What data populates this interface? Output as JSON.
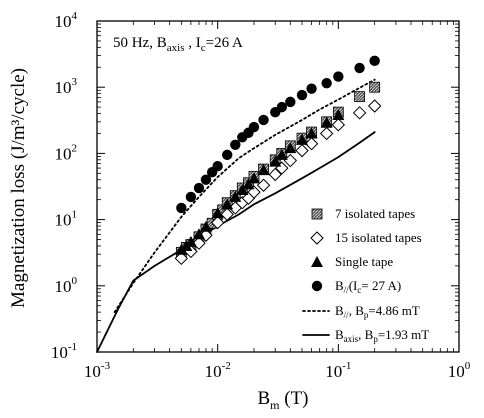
{
  "chart_data": {
    "type": "scatter",
    "annotation": {
      "prefix": "50 Hz, B",
      "sub": "axis",
      "suffix": " , I",
      "sub2": "c",
      "rest": "=26 A"
    },
    "xlabel": {
      "main": "B",
      "sub": "m",
      "rest": " (T)"
    },
    "ylabel": "Magnetization loss (J/m³/cycle)",
    "x_scale": "log",
    "y_scale": "log",
    "xlim": [
      0.001,
      1
    ],
    "ylim": [
      0.1,
      10000
    ],
    "x_ticks": [
      {
        "value": 0.001,
        "base": "10",
        "exp": "-3"
      },
      {
        "value": 0.01,
        "base": "10",
        "exp": "-2"
      },
      {
        "value": 0.1,
        "base": "10",
        "exp": "-1"
      },
      {
        "value": 1,
        "base": "10",
        "exp": "0"
      }
    ],
    "y_ticks": [
      {
        "value": 0.1,
        "base": "10",
        "exp": "-1"
      },
      {
        "value": 1,
        "base": "10",
        "exp": "0"
      },
      {
        "value": 10,
        "base": "10",
        "exp": "1"
      },
      {
        "value": 100,
        "base": "10",
        "exp": "2"
      },
      {
        "value": 1000,
        "base": "10",
        "exp": "3"
      },
      {
        "value": 10000,
        "base": "10",
        "exp": "4"
      }
    ],
    "grid": false,
    "legend_position": "lower-right",
    "series": [
      {
        "name": "7 isolated tapes",
        "marker": "square-hatched",
        "x": [
          0.005,
          0.0055,
          0.006,
          0.007,
          0.008,
          0.009,
          0.01,
          0.011,
          0.012,
          0.014,
          0.016,
          0.018,
          0.02,
          0.024,
          0.03,
          0.034,
          0.04,
          0.05,
          0.06,
          0.08,
          0.1,
          0.15,
          0.2
        ],
        "y": [
          3.2,
          3.8,
          4.2,
          5.5,
          7.2,
          8.8,
          12,
          14,
          18,
          23,
          30,
          36,
          45,
          58,
          80,
          100,
          130,
          170,
          210,
          300,
          420,
          720,
          1000
        ]
      },
      {
        "name": "15 isolated tapes",
        "marker": "diamond-open",
        "x": [
          0.005,
          0.006,
          0.007,
          0.008,
          0.01,
          0.012,
          0.014,
          0.016,
          0.018,
          0.02,
          0.024,
          0.03,
          0.034,
          0.04,
          0.05,
          0.06,
          0.08,
          0.1,
          0.15,
          0.2
        ],
        "y": [
          2.6,
          3.3,
          4.4,
          5.8,
          9,
          12,
          15,
          18,
          21,
          26,
          33,
          48,
          60,
          78,
          110,
          140,
          200,
          270,
          410,
          520
        ]
      },
      {
        "name": "Single tape",
        "marker": "triangle-filled",
        "x": [
          0.005,
          0.0055,
          0.006,
          0.007,
          0.008,
          0.01,
          0.012,
          0.014,
          0.016,
          0.018,
          0.02,
          0.024,
          0.03,
          0.034,
          0.04,
          0.05,
          0.06,
          0.08,
          0.1
        ],
        "y": [
          3.5,
          4,
          4.6,
          6,
          7.8,
          12.5,
          17,
          22,
          28,
          34,
          42,
          56,
          75,
          95,
          120,
          160,
          200,
          290,
          380
        ]
      },
      {
        "name": "B//(Ic= 27 A)",
        "legend": {
          "main": "B",
          "sub": "//",
          "rest": "(I",
          "sub2": "c",
          "rest2": "= 27 A)"
        },
        "marker": "circle-filled",
        "x": [
          0.005,
          0.006,
          0.007,
          0.008,
          0.009,
          0.01,
          0.012,
          0.014,
          0.016,
          0.018,
          0.02,
          0.024,
          0.03,
          0.034,
          0.04,
          0.05,
          0.06,
          0.08,
          0.1,
          0.15,
          0.2
        ],
        "y": [
          15,
          22,
          30,
          40,
          52,
          64,
          95,
          135,
          175,
          205,
          250,
          320,
          420,
          500,
          600,
          760,
          950,
          1150,
          1450,
          1950,
          2500
        ]
      },
      {
        "name": "B//, Bp=4.86 mT",
        "legend": {
          "main": "B",
          "sub": "//",
          "rest": ", B",
          "sub2": "p",
          "rest2": "=4.86 mT"
        },
        "marker": "dotted-line",
        "x": [
          0.0014,
          0.002,
          0.003,
          0.005,
          0.007,
          0.01,
          0.015,
          0.02,
          0.03,
          0.05,
          0.07,
          0.1,
          0.15,
          0.2
        ],
        "y": [
          0.4,
          1.1,
          3.2,
          11,
          22,
          44,
          85,
          120,
          190,
          320,
          460,
          650,
          980,
          1300
        ]
      },
      {
        "name": "Baxis, Bp=1.93 mT",
        "legend": {
          "main": "B",
          "sub": "axis",
          "rest": ", B",
          "sub2": "p",
          "rest2": "=1.93 mT"
        },
        "marker": "solid-line",
        "x": [
          0.001,
          0.0015,
          0.002,
          0.003,
          0.005,
          0.007,
          0.01,
          0.015,
          0.02,
          0.03,
          0.05,
          0.07,
          0.1,
          0.15,
          0.2
        ],
        "y": [
          0.1,
          0.45,
          1.2,
          2.0,
          3.5,
          5.3,
          8,
          12,
          17,
          25,
          42,
          60,
          88,
          145,
          210
        ]
      }
    ]
  }
}
